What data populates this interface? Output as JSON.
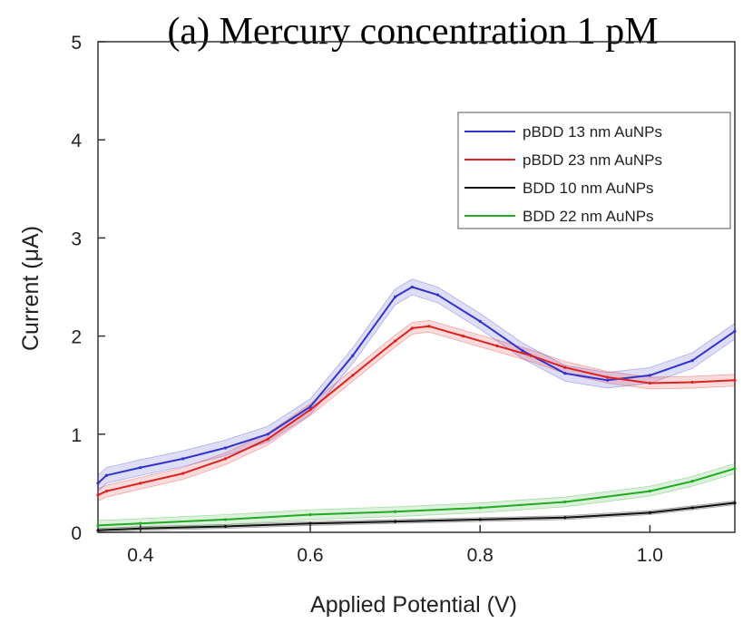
{
  "chart_data": {
    "type": "line",
    "title": "(a) Mercury concentration 1 pM",
    "xlabel": "Applied Potential (V)",
    "ylabel": "Current (μA)",
    "xlim": [
      0.35,
      1.1
    ],
    "ylim": [
      0,
      5
    ],
    "xticks": [
      0.4,
      0.6,
      0.8,
      1.0
    ],
    "xtick_labels": [
      "0.4",
      "0.6",
      "0.8",
      "1.0"
    ],
    "yticks": [
      0,
      1,
      2,
      3,
      4,
      5
    ],
    "ytick_labels": [
      "0",
      "1",
      "2",
      "3",
      "4",
      "5"
    ],
    "grid": false,
    "legend_position": "top-right",
    "series": [
      {
        "name": "pBDD 13 nm AuNPs",
        "color": "#3333cc",
        "points": [
          [
            0.35,
            0.5
          ],
          [
            0.36,
            0.58
          ],
          [
            0.4,
            0.66
          ],
          [
            0.45,
            0.75
          ],
          [
            0.5,
            0.86
          ],
          [
            0.55,
            1.0
          ],
          [
            0.6,
            1.28
          ],
          [
            0.65,
            1.8
          ],
          [
            0.7,
            2.4
          ],
          [
            0.72,
            2.5
          ],
          [
            0.75,
            2.42
          ],
          [
            0.8,
            2.15
          ],
          [
            0.85,
            1.85
          ],
          [
            0.9,
            1.62
          ],
          [
            0.95,
            1.55
          ],
          [
            1.0,
            1.6
          ],
          [
            1.05,
            1.75
          ],
          [
            1.1,
            2.05
          ]
        ],
        "error_band": 0.08
      },
      {
        "name": "pBDD 23 nm AuNPs",
        "color": "#dd2222",
        "points": [
          [
            0.35,
            0.38
          ],
          [
            0.36,
            0.42
          ],
          [
            0.4,
            0.5
          ],
          [
            0.45,
            0.6
          ],
          [
            0.5,
            0.75
          ],
          [
            0.55,
            0.95
          ],
          [
            0.6,
            1.25
          ],
          [
            0.65,
            1.6
          ],
          [
            0.7,
            1.95
          ],
          [
            0.72,
            2.08
          ],
          [
            0.74,
            2.1
          ],
          [
            0.78,
            2.0
          ],
          [
            0.82,
            1.9
          ],
          [
            0.86,
            1.8
          ],
          [
            0.9,
            1.68
          ],
          [
            0.95,
            1.58
          ],
          [
            1.0,
            1.52
          ],
          [
            1.05,
            1.53
          ],
          [
            1.1,
            1.55
          ]
        ],
        "error_band": 0.06
      },
      {
        "name": "BDD 10 nm AuNPs",
        "color": "#111111",
        "points": [
          [
            0.35,
            0.02
          ],
          [
            0.4,
            0.04
          ],
          [
            0.5,
            0.06
          ],
          [
            0.6,
            0.09
          ],
          [
            0.7,
            0.11
          ],
          [
            0.8,
            0.13
          ],
          [
            0.9,
            0.15
          ],
          [
            1.0,
            0.2
          ],
          [
            1.05,
            0.25
          ],
          [
            1.1,
            0.3
          ]
        ],
        "error_band": 0.02
      },
      {
        "name": "BDD 22 nm AuNPs",
        "color": "#22aa22",
        "points": [
          [
            0.35,
            0.07
          ],
          [
            0.4,
            0.09
          ],
          [
            0.5,
            0.13
          ],
          [
            0.6,
            0.18
          ],
          [
            0.7,
            0.21
          ],
          [
            0.8,
            0.25
          ],
          [
            0.9,
            0.31
          ],
          [
            1.0,
            0.42
          ],
          [
            1.05,
            0.52
          ],
          [
            1.1,
            0.65
          ]
        ],
        "error_band": 0.05
      }
    ]
  }
}
